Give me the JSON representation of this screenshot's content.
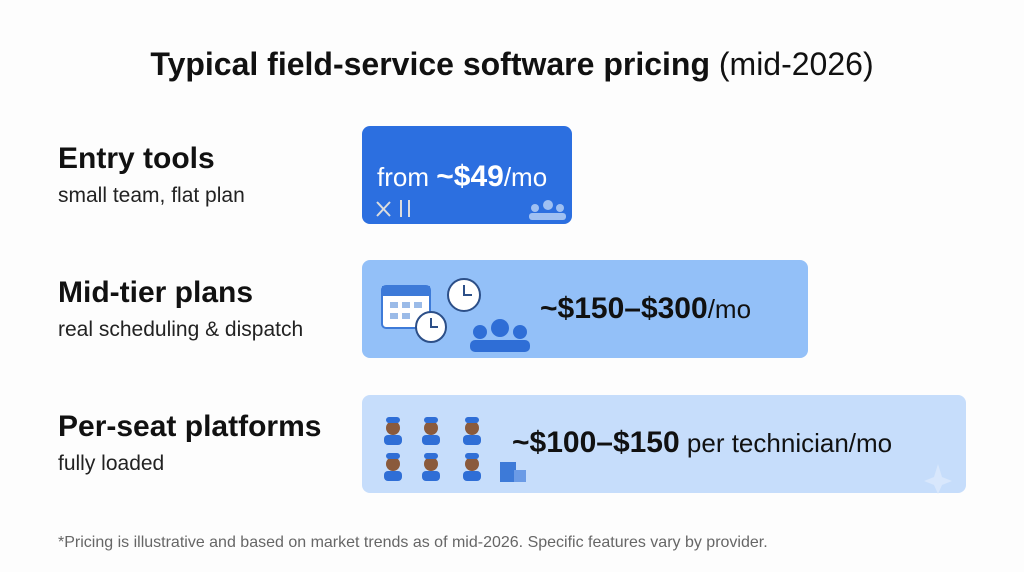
{
  "title": {
    "main": "Typical field-service software pricing",
    "suffix": "(mid-2026)"
  },
  "rows": [
    {
      "label": "Entry tools",
      "sublabel": "small team, flat plan",
      "price_prefix": "from ",
      "price": "~$49",
      "price_suffix": "/mo"
    },
    {
      "label": "Mid-tier plans",
      "sublabel": "real scheduling & dispatch",
      "price": "~$150–$300",
      "price_suffix": "/mo"
    },
    {
      "label": "Per-seat platforms",
      "sublabel": "fully loaded",
      "price": "~$100–$150",
      "price_suffix": " per technician/mo"
    }
  ],
  "footnote": "*Pricing is illustrative and based on market trends as of mid-2026. Specific features vary by provider."
}
